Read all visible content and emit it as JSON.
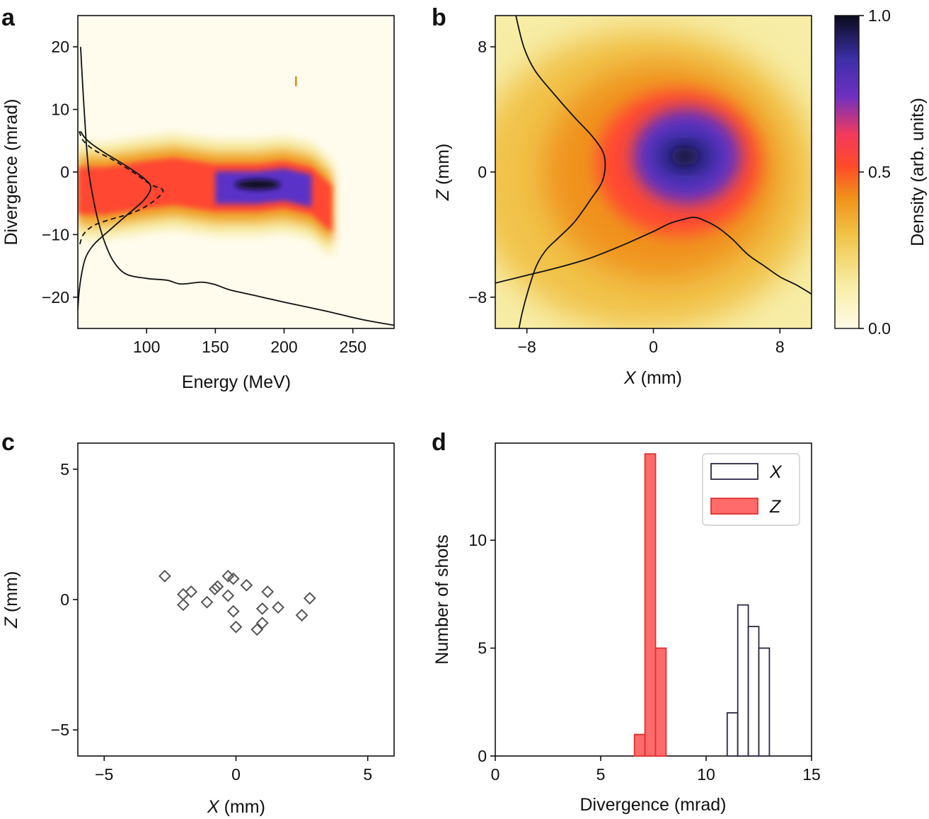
{
  "panels": {
    "a": "a",
    "b": "b",
    "c": "c",
    "d": "d"
  },
  "chart_data": [
    {
      "panel": "a",
      "type": "heatmap",
      "xlabel": "Energy (MeV)",
      "ylabel": "Divergence (mrad)",
      "xlim": [
        50,
        280
      ],
      "ylim": [
        -25,
        25
      ],
      "xticks": [
        100,
        150,
        200,
        250
      ],
      "yticks": [
        -20,
        -10,
        0,
        10,
        20
      ],
      "ytick_labels": [
        "−20",
        "−10",
        "0",
        "10",
        "20"
      ],
      "colormap": [
        "#fffbe6",
        "#f8eda4",
        "#efc346",
        "#f0901a",
        "#ff4a2a",
        "#f33a5c",
        "#7030c0",
        "#3d2fa8",
        "#0b0b1c"
      ],
      "feature_path": [
        [
          50,
          -3
        ],
        [
          70,
          -3
        ],
        [
          100,
          -2
        ],
        [
          120,
          -1.5
        ],
        [
          150,
          -2.5
        ],
        [
          180,
          -2.5
        ],
        [
          200,
          -2
        ],
        [
          220,
          -3
        ],
        [
          235,
          -6
        ]
      ],
      "peak": [
        190,
        -2
      ],
      "overlays": [
        {
          "name": "energy spectrum",
          "style": "solid",
          "points": [
            [
              52,
              20
            ],
            [
              54,
              12
            ],
            [
              56,
              5
            ],
            [
              58,
              0
            ],
            [
              61,
              -4
            ],
            [
              65,
              -8
            ],
            [
              70,
              -11.5
            ],
            [
              76,
              -14.3
            ],
            [
              85,
              -16.3
            ],
            [
              100,
              -17
            ],
            [
              115,
              -17.3
            ],
            [
              125,
              -17.9
            ],
            [
              140,
              -17.6
            ],
            [
              150,
              -18
            ],
            [
              160,
              -18.8
            ],
            [
              180,
              -19.8
            ],
            [
              200,
              -20.8
            ],
            [
              230,
              -22.2
            ],
            [
              255,
              -23.5
            ],
            [
              280,
              -24.5
            ]
          ]
        },
        {
          "name": "divergence profile",
          "style": "solid",
          "points": [
            [
              52,
              6.5
            ],
            [
              55,
              5.5
            ],
            [
              60,
              4.5
            ],
            [
              70,
              3
            ],
            [
              85,
              1
            ],
            [
              98,
              -1
            ],
            [
              103,
              -2.5
            ],
            [
              98,
              -4.5
            ],
            [
              85,
              -7
            ],
            [
              72,
              -9.5
            ],
            [
              62,
              -11.5
            ],
            [
              56,
              -13.5
            ],
            [
              53,
              -16
            ],
            [
              51,
              -19
            ],
            [
              50,
              -22
            ]
          ]
        },
        {
          "name": "divergence fit",
          "style": "dashed",
          "points": [
            [
              51,
              6.5
            ],
            [
              54,
              5
            ],
            [
              62,
              3.5
            ],
            [
              75,
              2
            ],
            [
              90,
              0
            ],
            [
              103,
              -2
            ],
            [
              112,
              -3
            ],
            [
              103,
              -5
            ],
            [
              90,
              -6.5
            ],
            [
              75,
              -7.5
            ],
            [
              62,
              -8.5
            ],
            [
              54,
              -10
            ],
            [
              51,
              -12
            ]
          ]
        }
      ],
      "artifact_point": [
        208.5,
        14.5
      ]
    },
    {
      "panel": "b",
      "type": "heatmap",
      "xlabel_symbol": "X",
      "xlabel_unit": "(mm)",
      "ylabel_symbol": "Z",
      "ylabel_unit": "(mm)",
      "xlim": [
        -10,
        10
      ],
      "ylim": [
        -10,
        10
      ],
      "xticks": [
        -8,
        0,
        8
      ],
      "xtick_labels": [
        "−8",
        "0",
        "8"
      ],
      "yticks": [
        -8,
        0,
        8
      ],
      "ytick_labels": [
        "−8",
        "0",
        "8"
      ],
      "peak": [
        2,
        1
      ],
      "overlays": [
        {
          "name": "vertical profile",
          "style": "solid",
          "points": [
            [
              -8.7,
              10
            ],
            [
              -8.2,
              8
            ],
            [
              -7.5,
              6.5
            ],
            [
              -6.3,
              5
            ],
            [
              -5,
              3.5
            ],
            [
              -3.8,
              2.2
            ],
            [
              -3.1,
              1
            ],
            [
              -3.2,
              -0.5
            ],
            [
              -4,
              -1.8
            ],
            [
              -5,
              -3.2
            ],
            [
              -6,
              -4.2
            ],
            [
              -6.8,
              -5
            ],
            [
              -7.4,
              -6
            ],
            [
              -7.9,
              -7.5
            ],
            [
              -8.3,
              -9
            ],
            [
              -8.5,
              -10
            ]
          ]
        },
        {
          "name": "horizontal profile",
          "style": "solid",
          "points": [
            [
              -10,
              -7.1
            ],
            [
              -8,
              -6.6
            ],
            [
              -6,
              -6.1
            ],
            [
              -4,
              -5.5
            ],
            [
              -2,
              -4.7
            ],
            [
              0,
              -3.8
            ],
            [
              1,
              -3.3
            ],
            [
              2,
              -3
            ],
            [
              2.5,
              -2.9
            ],
            [
              3,
              -3
            ],
            [
              4,
              -3.5
            ],
            [
              5,
              -4.3
            ],
            [
              6,
              -5.3
            ],
            [
              7,
              -6
            ],
            [
              8,
              -6.7
            ],
            [
              9,
              -7.2
            ],
            [
              10,
              -7.8
            ]
          ]
        }
      ],
      "colorbar": {
        "label": "Density (arb. units)",
        "range": [
          0,
          1
        ],
        "ticks": [
          0,
          0.5,
          1
        ],
        "tick_labels": [
          "0.0",
          "0.5",
          "1.0"
        ]
      }
    },
    {
      "panel": "c",
      "type": "scatter",
      "xlabel_symbol": "X",
      "xlabel_unit": "(mm)",
      "ylabel_symbol": "Z",
      "ylabel_unit": "(mm)",
      "xlim": [
        -6,
        6
      ],
      "ylim": [
        -6,
        6
      ],
      "xticks": [
        -5,
        0,
        5
      ],
      "xtick_labels": [
        "−5",
        "0",
        "5"
      ],
      "yticks": [
        -5,
        0,
        5
      ],
      "ytick_labels": [
        "−5",
        "0",
        "5"
      ],
      "marker": "diamond",
      "points": [
        [
          -2.7,
          0.9
        ],
        [
          -2.0,
          0.2
        ],
        [
          -1.7,
          0.3
        ],
        [
          -2.0,
          -0.2
        ],
        [
          -1.1,
          -0.1
        ],
        [
          -0.7,
          0.5
        ],
        [
          -0.8,
          0.4
        ],
        [
          -0.3,
          0.9
        ],
        [
          -0.1,
          0.8
        ],
        [
          -0.3,
          0.15
        ],
        [
          0.4,
          0.55
        ],
        [
          -0.1,
          -0.45
        ],
        [
          0.0,
          -1.05
        ],
        [
          1.2,
          0.3
        ],
        [
          1.0,
          -0.35
        ],
        [
          1.6,
          -0.3
        ],
        [
          1.0,
          -0.9
        ],
        [
          0.8,
          -1.15
        ],
        [
          2.5,
          -0.6
        ],
        [
          2.8,
          0.05
        ]
      ]
    },
    {
      "panel": "d",
      "type": "bar",
      "xlabel": "Divergence (mrad)",
      "ylabel": "Number of shots",
      "xlim": [
        0,
        15
      ],
      "ylim": [
        0,
        14.5
      ],
      "xticks": [
        0,
        5,
        10,
        15
      ],
      "yticks": [
        0,
        5,
        10
      ],
      "legend_position": "top-right",
      "series": [
        {
          "name": "X",
          "style": "outline",
          "color": "#2a2a44",
          "bins": [
            [
              11.0,
              11.5,
              2
            ],
            [
              11.5,
              12.0,
              7
            ],
            [
              12.0,
              12.5,
              6
            ],
            [
              12.5,
              13.0,
              5
            ]
          ]
        },
        {
          "name": "Z",
          "style": "filled",
          "color": "#ff6b6b",
          "edge": "#e03030",
          "bins": [
            [
              6.6,
              7.1,
              1
            ],
            [
              7.1,
              7.6,
              14
            ],
            [
              7.6,
              8.1,
              5
            ]
          ]
        }
      ]
    }
  ]
}
